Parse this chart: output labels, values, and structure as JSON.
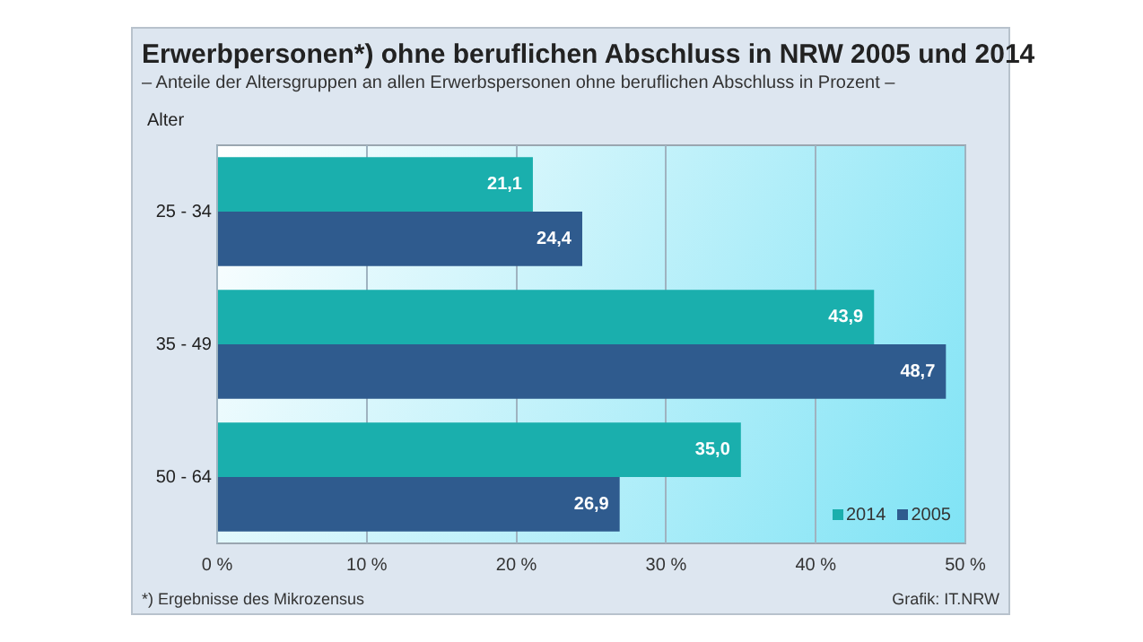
{
  "chart_data": {
    "type": "bar",
    "orientation": "horizontal",
    "title": "Erwerbpersonen*) ohne beruflichen Abschluss in NRW  2005 und 2014",
    "subtitle": "– Anteile der Altersgruppen an allen Erwerbspersonen ohne beruflichen Abschluss in Prozent –",
    "ylabel": "Alter",
    "categories": [
      "25 - 34",
      "35 - 49",
      "50 - 64"
    ],
    "series": [
      {
        "name": "2014",
        "color": "#1aafad",
        "values": [
          21.1,
          43.9,
          35.0
        ],
        "value_labels": [
          "21,1",
          "43,9",
          "35,0"
        ]
      },
      {
        "name": "2005",
        "color": "#2f5b8e",
        "values": [
          24.4,
          48.7,
          26.9
        ],
        "value_labels": [
          "24,4",
          "48,7",
          "26,9"
        ]
      }
    ],
    "xlim": [
      0,
      50
    ],
    "xticks": [
      {
        "value": 0,
        "label": "0 %"
      },
      {
        "value": 10,
        "label": "10 %"
      },
      {
        "value": 20,
        "label": "20 %"
      },
      {
        "value": 30,
        "label": "30 %"
      },
      {
        "value": 40,
        "label": "40 %"
      },
      {
        "value": 50,
        "label": "50 %"
      }
    ],
    "grid": "x",
    "legend": "bottom right",
    "annotations": [
      "*) Ergebnisse  des Mikrozensus",
      "Grafik: IT.NRW"
    ]
  }
}
